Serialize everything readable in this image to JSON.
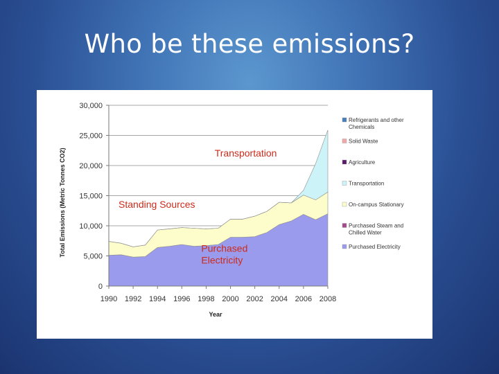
{
  "slide": {
    "title": "Who be these emissions?"
  },
  "chart_data": {
    "type": "area",
    "stacked": true,
    "title": "",
    "xlabel": "Year",
    "ylabel": "Total Emissions (Metric Tonnes CO2)",
    "x": [
      1990,
      1991,
      1992,
      1993,
      1994,
      1995,
      1996,
      1997,
      1998,
      1999,
      2000,
      2001,
      2002,
      2003,
      2004,
      2005,
      2006,
      2007,
      2008
    ],
    "xticks": [
      1990,
      1992,
      1994,
      1996,
      1998,
      2000,
      2002,
      2004,
      2006,
      2008
    ],
    "xtick_labels": [
      "1990",
      "1992",
      "1994",
      "1996",
      "1998",
      "2000",
      "2002",
      "2004",
      "2006",
      "2008"
    ],
    "ylim": [
      0,
      30000
    ],
    "yticks": [
      0,
      5000,
      10000,
      15000,
      20000,
      25000,
      30000
    ],
    "ytick_labels": [
      "0",
      "5,000",
      "10,000",
      "15,000",
      "20,000",
      "25,000",
      "30,000"
    ],
    "grid": true,
    "legend_position": "right",
    "series": [
      {
        "name": "Purchased Electricity",
        "color": "#9b9bee",
        "values": [
          5100,
          5200,
          4800,
          4900,
          6400,
          6600,
          6900,
          6600,
          6700,
          6900,
          8100,
          8100,
          8200,
          8900,
          10200,
          10800,
          11900,
          11000,
          12000
        ]
      },
      {
        "name": "Purchased Steam and Chilled Water",
        "color": "#a24a8c",
        "values": [
          0,
          0,
          0,
          0,
          0,
          0,
          0,
          0,
          0,
          0,
          0,
          0,
          0,
          0,
          0,
          0,
          0,
          0,
          0
        ]
      },
      {
        "name": "On-campus Stationary",
        "color": "#fdfdcc",
        "values": [
          2300,
          1900,
          1700,
          1900,
          2900,
          2900,
          2800,
          3000,
          2800,
          2700,
          3000,
          3000,
          3400,
          3500,
          3700,
          3000,
          3200,
          3300,
          3600
        ]
      },
      {
        "name": "Transportation",
        "color": "#ccf4f8",
        "values": [
          0,
          0,
          0,
          0,
          0,
          0,
          0,
          0,
          0,
          0,
          0,
          0,
          0,
          0,
          0,
          0,
          800,
          6000,
          10300
        ]
      },
      {
        "name": "Agriculture",
        "color": "#5a1a68",
        "values": [
          0,
          0,
          0,
          0,
          0,
          0,
          0,
          0,
          0,
          0,
          0,
          0,
          0,
          0,
          0,
          0,
          0,
          0,
          0
        ]
      },
      {
        "name": "Solid Waste",
        "color": "#f0a8a8",
        "values": [
          0,
          0,
          0,
          0,
          0,
          0,
          0,
          0,
          0,
          0,
          0,
          0,
          0,
          0,
          0,
          0,
          0,
          0,
          0
        ]
      },
      {
        "name": "Refrigerants and other Chemicals",
        "color": "#4a7fb8",
        "values": [
          0,
          0,
          0,
          0,
          0,
          0,
          0,
          0,
          0,
          0,
          0,
          0,
          0,
          0,
          0,
          0,
          0,
          0,
          0
        ]
      }
    ],
    "legend_order": [
      "Refrigerants and other Chemicals",
      "Solid Waste",
      "Agriculture",
      "Transportation",
      "On-campus Stationary",
      "Purchased Steam and Chilled Water",
      "Purchased Electricity"
    ],
    "annotations": [
      {
        "text": "Transportation",
        "x": 1998.7,
        "y": 21500
      },
      {
        "text": "Standing Sources",
        "x": 1990.8,
        "y": 13000
      },
      {
        "text": "Purchased Electricity",
        "x": 1997.6,
        "y": 5700,
        "lines": [
          "Purchased",
          "Electricity"
        ]
      }
    ]
  }
}
